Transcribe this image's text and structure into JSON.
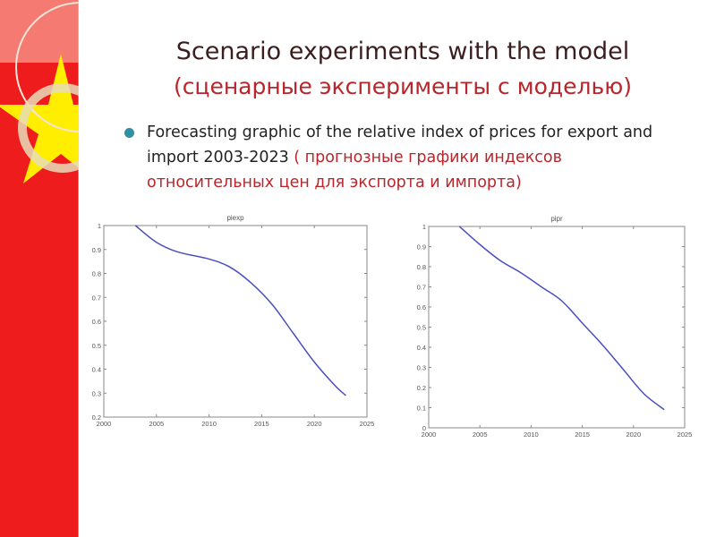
{
  "slide": {
    "title": "Scenario experiments with the model",
    "subtitle": "(сценарные эксперименты с моделью)",
    "bullet_en": "Forecasting graphic of the relative index of prices for export and import 2003-2023",
    "bullet_ru": " ( прогнозные графики индексов относительных цен для экспорта и импорта)",
    "colors": {
      "band": "#ee1c1c",
      "star": "#ffee00",
      "line": "#4a4fc0",
      "title": "#3b1f1f",
      "accent": "#b8262b"
    }
  },
  "chart_data": [
    {
      "type": "line",
      "title": "piexp",
      "xlim": [
        2000,
        2025
      ],
      "ylim": [
        0.2,
        1
      ],
      "xticks": [
        "2000",
        "2005",
        "2010",
        "2015",
        "2020",
        "2025"
      ],
      "yticks": [
        "1",
        "0.9",
        "0.8",
        "0.7",
        "0.6",
        "0.5",
        "0.4",
        "0.3",
        "0.2"
      ],
      "x": [
        2003,
        2005,
        2007,
        2010,
        2012,
        2014,
        2016,
        2018,
        2020,
        2022,
        2023
      ],
      "y": [
        1.0,
        0.93,
        0.89,
        0.86,
        0.826,
        0.76,
        0.67,
        0.55,
        0.43,
        0.33,
        0.29
      ]
    },
    {
      "type": "line",
      "title": "pipr",
      "xlim": [
        2000,
        2025
      ],
      "ylim": [
        0,
        1
      ],
      "xticks": [
        "2000",
        "2005",
        "2010",
        "2015",
        "2020",
        "2025"
      ],
      "yticks": [
        "1",
        "0.9",
        "0.8",
        "0.7",
        "0.6",
        "0.5",
        "0.4",
        "0.3",
        "0.2",
        "0.1",
        "0"
      ],
      "x": [
        2003,
        2005,
        2007,
        2009,
        2011,
        2013,
        2015,
        2017,
        2019,
        2021,
        2023
      ],
      "y": [
        1.0,
        0.91,
        0.83,
        0.77,
        0.7,
        0.63,
        0.52,
        0.41,
        0.29,
        0.17,
        0.09
      ]
    }
  ]
}
